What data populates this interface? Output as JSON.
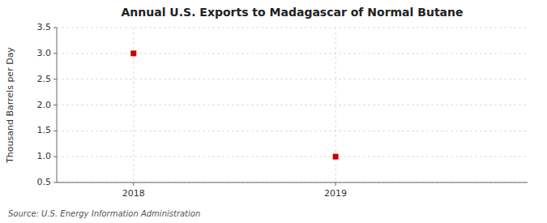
{
  "chart_data": {
    "type": "scatter",
    "title": "Annual U.S. Exports to Madagascar of Normal Butane",
    "y_label": "Thousand Barrels per Day",
    "annotations": [
      "Source: U.S. Energy Information Administration"
    ],
    "x": [
      2018,
      2019
    ],
    "values": [
      3.0,
      1.0
    ],
    "color": "#cc0000",
    "marker": "square",
    "xlim": [
      2017.62,
      2019.95
    ],
    "xticks": [
      2018,
      2019
    ],
    "ylim": [
      0.5,
      3.5
    ],
    "yticks": [
      0.5,
      {
        "value": 1.0,
        "label": "1.0"
      },
      1.5,
      {
        "value": 2.0,
        "label": "2.0"
      },
      2.5,
      {
        "value": 3.0,
        "label": "3.0"
      },
      3.5
    ],
    "grid": true
  }
}
